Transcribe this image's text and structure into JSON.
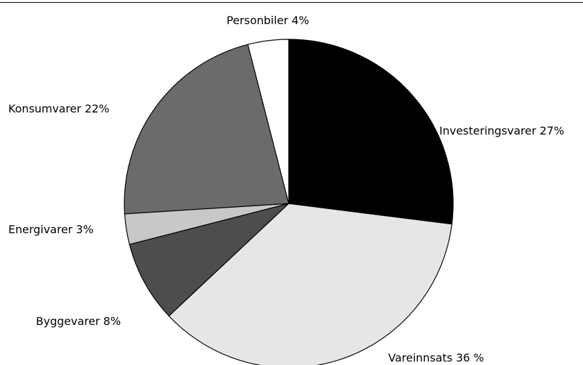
{
  "chart_data": {
    "type": "pie",
    "categories": [
      "Investeringsvarer",
      "Vareinnsats",
      "Byggevarer",
      "Energivarer",
      "Konsumvarer",
      "Personbiler"
    ],
    "values": [
      27,
      36,
      8,
      3,
      22,
      4
    ],
    "value_labels": [
      "27%",
      "36 %",
      "8%",
      "3%",
      "22%",
      "4%"
    ],
    "colors": [
      "#000000",
      "#e6e6e6",
      "#4d4d4d",
      "#c8c8c8",
      "#6b6b6b",
      "#ffffff"
    ]
  }
}
